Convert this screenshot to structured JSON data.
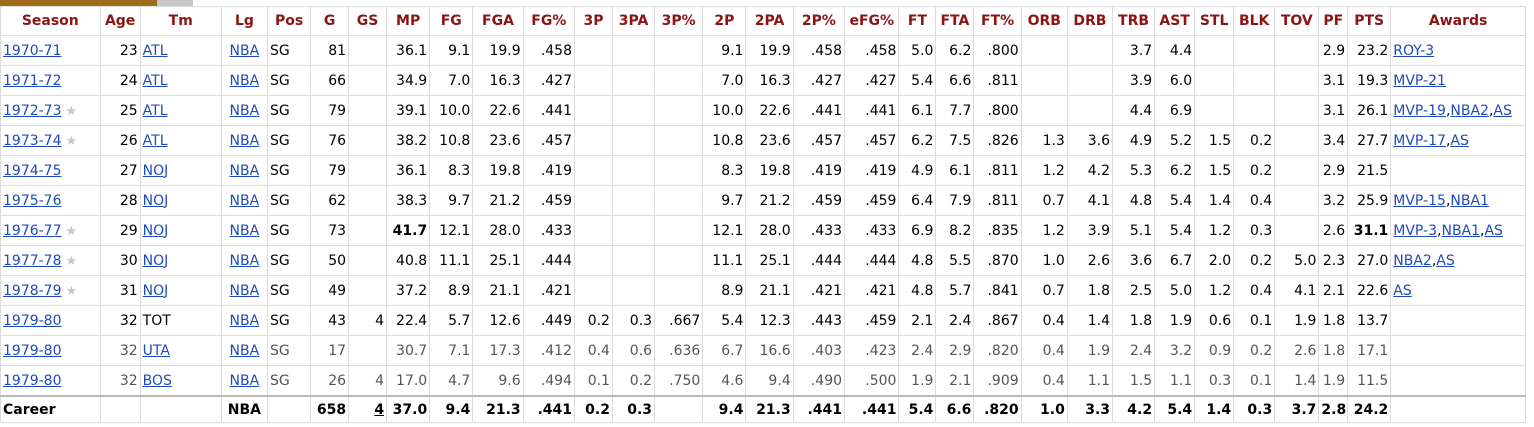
{
  "headers": [
    "Season",
    "Age",
    "Tm",
    "Lg",
    "Pos",
    "G",
    "GS",
    "MP",
    "FG",
    "FGA",
    "FG%",
    "3P",
    "3PA",
    "3P%",
    "2P",
    "2PA",
    "2P%",
    "eFG%",
    "FT",
    "FTA",
    "FT%",
    "ORB",
    "DRB",
    "TRB",
    "AST",
    "STL",
    "BLK",
    "TOV",
    "PF",
    "PTS",
    "Awards"
  ],
  "rows": [
    {
      "season": "1970-71",
      "star": false,
      "age": "23",
      "tm": "ATL",
      "tm_link": true,
      "lg": "NBA",
      "pos": "SG",
      "g": "81",
      "gs": "",
      "mp": "36.1",
      "fg": "9.1",
      "fga": "19.9",
      "fgp": ".458",
      "p3": "",
      "p3a": "",
      "p3p": "",
      "p2": "9.1",
      "p2a": "19.9",
      "p2p": ".458",
      "efg": ".458",
      "ft": "5.0",
      "fta": "6.2",
      "ftp": ".800",
      "orb": "",
      "drb": "",
      "trb": "3.7",
      "ast": "4.4",
      "stl": "",
      "blk": "",
      "tov": "",
      "pf": "2.9",
      "pts": "23.2",
      "awards": [
        {
          "text": "ROY-3"
        }
      ]
    },
    {
      "season": "1971-72",
      "star": false,
      "age": "24",
      "tm": "ATL",
      "tm_link": true,
      "lg": "NBA",
      "pos": "SG",
      "g": "66",
      "gs": "",
      "mp": "34.9",
      "fg": "7.0",
      "fga": "16.3",
      "fgp": ".427",
      "p3": "",
      "p3a": "",
      "p3p": "",
      "p2": "7.0",
      "p2a": "16.3",
      "p2p": ".427",
      "efg": ".427",
      "ft": "5.4",
      "fta": "6.6",
      "ftp": ".811",
      "orb": "",
      "drb": "",
      "trb": "3.9",
      "ast": "6.0",
      "stl": "",
      "blk": "",
      "tov": "",
      "pf": "3.1",
      "pts": "19.3",
      "awards": [
        {
          "text": "MVP-21"
        }
      ]
    },
    {
      "season": "1972-73",
      "star": true,
      "age": "25",
      "tm": "ATL",
      "tm_link": true,
      "lg": "NBA",
      "pos": "SG",
      "g": "79",
      "gs": "",
      "mp": "39.1",
      "fg": "10.0",
      "fga": "22.6",
      "fgp": ".441",
      "p3": "",
      "p3a": "",
      "p3p": "",
      "p2": "10.0",
      "p2a": "22.6",
      "p2p": ".441",
      "efg": ".441",
      "ft": "6.1",
      "fta": "7.7",
      "ftp": ".800",
      "orb": "",
      "drb": "",
      "trb": "4.4",
      "ast": "6.9",
      "stl": "",
      "blk": "",
      "tov": "",
      "pf": "3.1",
      "pts": "26.1",
      "awards": [
        {
          "text": "MVP-19"
        },
        {
          "text": "NBA2"
        },
        {
          "text": "AS"
        }
      ]
    },
    {
      "season": "1973-74",
      "star": true,
      "age": "26",
      "tm": "ATL",
      "tm_link": true,
      "lg": "NBA",
      "pos": "SG",
      "g": "76",
      "gs": "",
      "mp": "38.2",
      "fg": "10.8",
      "fga": "23.6",
      "fgp": ".457",
      "p3": "",
      "p3a": "",
      "p3p": "",
      "p2": "10.8",
      "p2a": "23.6",
      "p2p": ".457",
      "efg": ".457",
      "ft": "6.2",
      "fta": "7.5",
      "ftp": ".826",
      "orb": "1.3",
      "drb": "3.6",
      "trb": "4.9",
      "ast": "5.2",
      "stl": "1.5",
      "blk": "0.2",
      "tov": "",
      "pf": "3.4",
      "pts": "27.7",
      "awards": [
        {
          "text": "MVP-17"
        },
        {
          "text": "AS"
        }
      ]
    },
    {
      "season": "1974-75",
      "star": false,
      "age": "27",
      "tm": "NOJ",
      "tm_link": true,
      "lg": "NBA",
      "pos": "SG",
      "g": "79",
      "gs": "",
      "mp": "36.1",
      "fg": "8.3",
      "fga": "19.8",
      "fgp": ".419",
      "p3": "",
      "p3a": "",
      "p3p": "",
      "p2": "8.3",
      "p2a": "19.8",
      "p2p": ".419",
      "efg": ".419",
      "ft": "4.9",
      "fta": "6.1",
      "ftp": ".811",
      "orb": "1.2",
      "drb": "4.2",
      "trb": "5.3",
      "ast": "6.2",
      "stl": "1.5",
      "blk": "0.2",
      "tov": "",
      "pf": "2.9",
      "pts": "21.5",
      "awards": []
    },
    {
      "season": "1975-76",
      "star": false,
      "age": "28",
      "tm": "NOJ",
      "tm_link": true,
      "lg": "NBA",
      "pos": "SG",
      "g": "62",
      "gs": "",
      "mp": "38.3",
      "fg": "9.7",
      "fga": "21.2",
      "fgp": ".459",
      "p3": "",
      "p3a": "",
      "p3p": "",
      "p2": "9.7",
      "p2a": "21.2",
      "p2p": ".459",
      "efg": ".459",
      "ft": "6.4",
      "fta": "7.9",
      "ftp": ".811",
      "orb": "0.7",
      "drb": "4.1",
      "trb": "4.8",
      "ast": "5.4",
      "stl": "1.4",
      "blk": "0.4",
      "tov": "",
      "pf": "3.2",
      "pts": "25.9",
      "awards": [
        {
          "text": "MVP-15"
        },
        {
          "text": "NBA1"
        }
      ]
    },
    {
      "season": "1976-77",
      "star": true,
      "age": "29",
      "tm": "NOJ",
      "tm_link": true,
      "lg": "NBA",
      "pos": "SG",
      "g": "73",
      "gs": "",
      "mp": "41.7",
      "mp_bold": true,
      "fg": "12.1",
      "fga": "28.0",
      "fgp": ".433",
      "p3": "",
      "p3a": "",
      "p3p": "",
      "p2": "12.1",
      "p2a": "28.0",
      "p2p": ".433",
      "efg": ".433",
      "ft": "6.9",
      "fta": "8.2",
      "ftp": ".835",
      "orb": "1.2",
      "drb": "3.9",
      "trb": "5.1",
      "ast": "5.4",
      "stl": "1.2",
      "blk": "0.3",
      "tov": "",
      "pf": "2.6",
      "pts": "31.1",
      "pts_bold": true,
      "awards": [
        {
          "text": "MVP-3"
        },
        {
          "text": "NBA1"
        },
        {
          "text": "AS"
        }
      ]
    },
    {
      "season": "1977-78",
      "star": true,
      "age": "30",
      "tm": "NOJ",
      "tm_link": true,
      "lg": "NBA",
      "pos": "SG",
      "g": "50",
      "gs": "",
      "mp": "40.8",
      "fg": "11.1",
      "fga": "25.1",
      "fgp": ".444",
      "p3": "",
      "p3a": "",
      "p3p": "",
      "p2": "11.1",
      "p2a": "25.1",
      "p2p": ".444",
      "efg": ".444",
      "ft": "4.8",
      "fta": "5.5",
      "ftp": ".870",
      "orb": "1.0",
      "drb": "2.6",
      "trb": "3.6",
      "ast": "6.7",
      "stl": "2.0",
      "blk": "0.2",
      "tov": "5.0",
      "pf": "2.3",
      "pts": "27.0",
      "awards": [
        {
          "text": "NBA2"
        },
        {
          "text": "AS"
        }
      ]
    },
    {
      "season": "1978-79",
      "star": true,
      "age": "31",
      "tm": "NOJ",
      "tm_link": true,
      "lg": "NBA",
      "pos": "SG",
      "g": "49",
      "gs": "",
      "mp": "37.2",
      "fg": "8.9",
      "fga": "21.1",
      "fgp": ".421",
      "p3": "",
      "p3a": "",
      "p3p": "",
      "p2": "8.9",
      "p2a": "21.1",
      "p2p": ".421",
      "efg": ".421",
      "ft": "4.8",
      "fta": "5.7",
      "ftp": ".841",
      "orb": "0.7",
      "drb": "1.8",
      "trb": "2.5",
      "ast": "5.0",
      "stl": "1.2",
      "blk": "0.4",
      "tov": "4.1",
      "pf": "2.1",
      "pts": "22.6",
      "awards": [
        {
          "text": "AS"
        }
      ]
    },
    {
      "season": "1979-80",
      "star": false,
      "age": "32",
      "tm": "TOT",
      "tm_link": false,
      "lg": "NBA",
      "pos": "SG",
      "g": "43",
      "gs": "4",
      "mp": "22.4",
      "fg": "5.7",
      "fga": "12.6",
      "fgp": ".449",
      "p3": "0.2",
      "p3a": "0.3",
      "p3p": ".667",
      "p2": "5.4",
      "p2a": "12.3",
      "p2p": ".443",
      "efg": ".459",
      "ft": "2.1",
      "fta": "2.4",
      "ftp": ".867",
      "orb": "0.4",
      "drb": "1.4",
      "trb": "1.8",
      "ast": "1.9",
      "stl": "0.6",
      "blk": "0.1",
      "tov": "1.9",
      "pf": "1.8",
      "pts": "13.7",
      "awards": []
    },
    {
      "season": "1979-80",
      "star": false,
      "sub": true,
      "age": "32",
      "tm": "UTA",
      "tm_link": true,
      "lg": "NBA",
      "pos": "SG",
      "g": "17",
      "gs": "",
      "mp": "30.7",
      "fg": "7.1",
      "fga": "17.3",
      "fgp": ".412",
      "p3": "0.4",
      "p3a": "0.6",
      "p3p": ".636",
      "p2": "6.7",
      "p2a": "16.6",
      "p2p": ".403",
      "efg": ".423",
      "ft": "2.4",
      "fta": "2.9",
      "ftp": ".820",
      "orb": "0.4",
      "drb": "1.9",
      "trb": "2.4",
      "ast": "3.2",
      "stl": "0.9",
      "blk": "0.2",
      "tov": "2.6",
      "pf": "1.8",
      "pts": "17.1",
      "awards": []
    },
    {
      "season": "1979-80",
      "star": false,
      "sub": true,
      "age": "32",
      "tm": "BOS",
      "tm_link": true,
      "lg": "NBA",
      "pos": "SG",
      "g": "26",
      "gs": "4",
      "mp": "17.0",
      "fg": "4.7",
      "fga": "9.6",
      "fgp": ".494",
      "p3": "0.1",
      "p3a": "0.2",
      "p3p": ".750",
      "p2": "4.6",
      "p2a": "9.4",
      "p2p": ".490",
      "efg": ".500",
      "ft": "1.9",
      "fta": "2.1",
      "ftp": ".909",
      "orb": "0.4",
      "drb": "1.1",
      "trb": "1.5",
      "ast": "1.1",
      "stl": "0.3",
      "blk": "0.1",
      "tov": "1.4",
      "pf": "1.9",
      "pts": "11.5",
      "awards": []
    }
  ],
  "career": {
    "season": "Career",
    "age": "",
    "tm": "",
    "lg": "NBA",
    "pos": "",
    "g": "658",
    "gs": "4",
    "mp": "37.0",
    "fg": "9.4",
    "fga": "21.3",
    "fgp": ".441",
    "p3": "0.2",
    "p3a": "0.3",
    "p3p": "",
    "p2": "9.4",
    "p2a": "21.3",
    "p2p": ".441",
    "efg": ".441",
    "ft": "5.4",
    "fta": "6.6",
    "ftp": ".820",
    "orb": "1.0",
    "drb": "3.3",
    "trb": "4.2",
    "ast": "5.4",
    "stl": "1.4",
    "blk": "0.3",
    "tov": "3.7",
    "pf": "2.8",
    "pts": "24.2",
    "awards": ""
  },
  "icons": {
    "star": "star-icon"
  },
  "colors": {
    "header_text": "#8b1414",
    "link": "#1e4bbd",
    "tab": "#a06a1c"
  }
}
